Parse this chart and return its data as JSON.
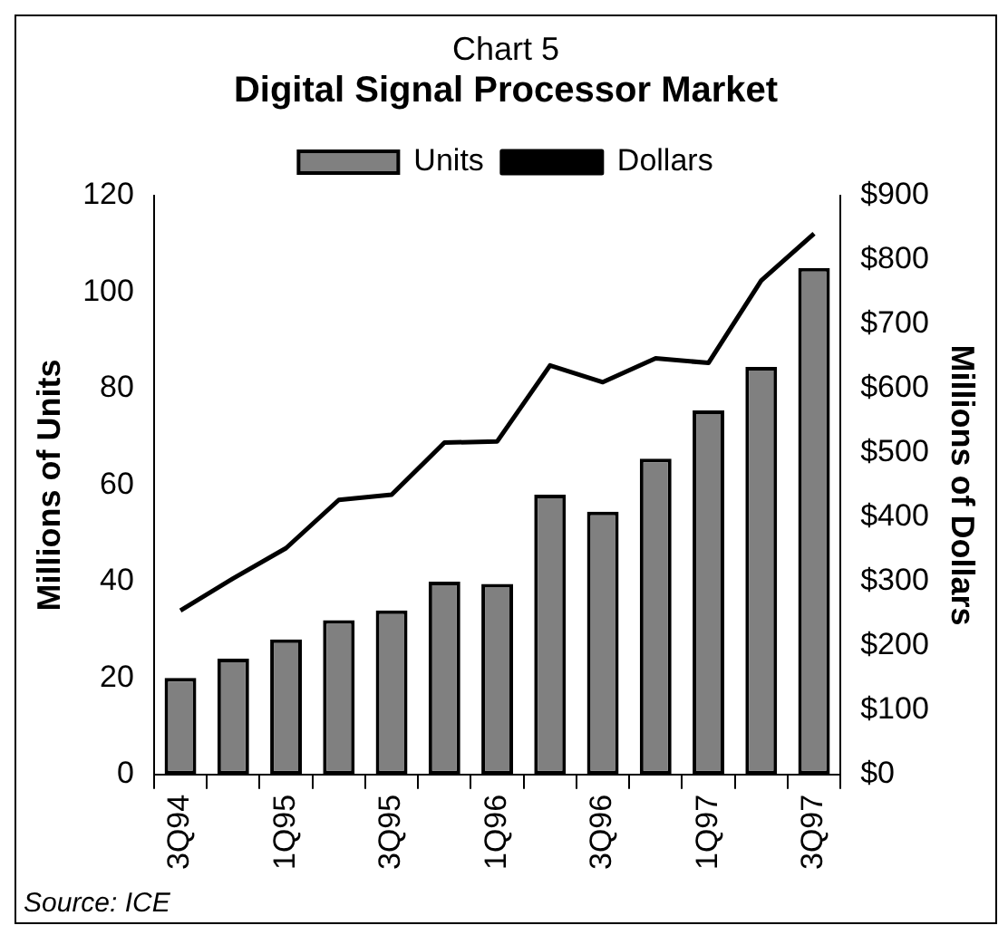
{
  "chart_data": {
    "type": "bar",
    "title": "Digital Signal Processor Market",
    "subtitle": "Chart 5",
    "ylabel": "Millions of Units",
    "y2label": "Millions of Dollars",
    "categories": [
      "3Q94",
      null,
      "1Q95",
      null,
      "3Q95",
      null,
      "1Q96",
      null,
      "3Q96",
      null,
      "1Q97",
      null,
      "3Q97"
    ],
    "series": [
      {
        "name": "Units",
        "color": "#808080",
        "values": [
          20,
          24,
          28,
          32,
          34,
          40,
          39.5,
          58,
          54.5,
          65.5,
          75.5,
          84.5,
          105
        ]
      },
      {
        "name": "Dollars",
        "type": "line",
        "axis": "y2",
        "color": "#000000",
        "values": [
          255,
          305,
          352,
          427,
          435,
          516,
          518,
          636,
          610,
          647,
          640,
          768,
          841
        ]
      }
    ],
    "ylim": [
      0,
      120
    ],
    "yticks": [
      0,
      20,
      40,
      60,
      80,
      100,
      120
    ],
    "y2lim": [
      0,
      900
    ],
    "y2ticks": [
      {
        "value": 0,
        "label": "$0"
      },
      {
        "value": 100,
        "label": "$100"
      },
      {
        "value": 200,
        "label": "$200"
      },
      {
        "value": 300,
        "label": "$300"
      },
      {
        "value": 400,
        "label": "$400"
      },
      {
        "value": 500,
        "label": "$500"
      },
      {
        "value": 600,
        "label": "$600"
      },
      {
        "value": 700,
        "label": "$700"
      },
      {
        "value": 800,
        "label": "$800"
      },
      {
        "value": 900,
        "label": "$900"
      }
    ],
    "grid": false,
    "legend": "top",
    "marker": "none",
    "annotations": [
      "Source: ICE"
    ]
  }
}
